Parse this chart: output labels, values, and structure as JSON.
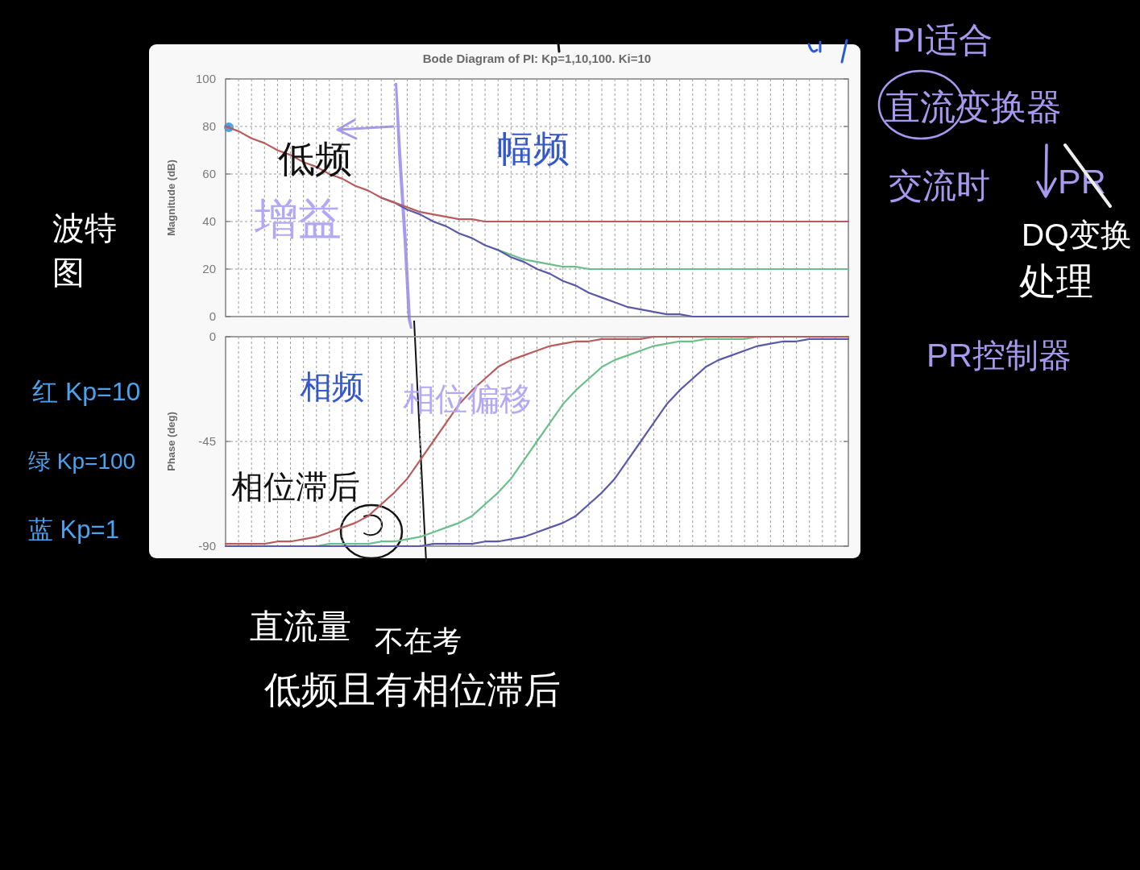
{
  "chart_data": [
    {
      "type": "line",
      "title": "Bode Diagram of PI: Kp=1,10,100. Ki=10",
      "ylabel": "Magnitude (dB)",
      "categories": [
        null,
        null,
        null,
        null,
        null,
        null,
        null,
        null,
        null,
        null,
        null,
        null,
        null,
        null,
        null,
        null,
        null,
        null,
        null,
        null,
        null,
        null,
        null,
        null,
        null,
        null,
        null,
        null,
        null,
        null,
        null,
        null,
        null,
        null,
        null,
        null,
        null,
        null,
        null,
        null,
        null,
        null,
        null,
        null,
        null,
        null,
        null,
        null,
        null
      ],
      "series": [
        {
          "color": "#6cbf8c",
          "values": [
            null,
            null,
            null,
            null,
            null,
            null,
            null,
            null,
            null,
            null,
            null,
            null,
            null,
            null,
            null,
            null,
            null,
            null,
            null,
            null,
            null,
            28,
            26,
            24,
            23,
            22,
            21,
            21,
            20,
            20,
            20,
            20,
            20,
            20,
            20,
            20,
            20,
            20,
            20,
            20,
            20,
            20,
            20,
            20,
            20,
            20,
            20,
            20,
            20
          ]
        },
        {
          "color": "#5a5aa8",
          "values": [
            null,
            null,
            null,
            null,
            null,
            null,
            null,
            null,
            null,
            null,
            null,
            null,
            50,
            48,
            45,
            43,
            40,
            38,
            35,
            33,
            30,
            28,
            25,
            23,
            20,
            18,
            15,
            13,
            10,
            8,
            6,
            4,
            3,
            2,
            1,
            1,
            0,
            0,
            0,
            0,
            0,
            0,
            0,
            0,
            0,
            0,
            0,
            0,
            0
          ]
        },
        {
          "color": "#b85c5c",
          "values": [
            80,
            78,
            75,
            73,
            70,
            68,
            65,
            63,
            60,
            58,
            55,
            53,
            50,
            48,
            46,
            44,
            43,
            42,
            41,
            41,
            40,
            40,
            40,
            40,
            40,
            40,
            40,
            40,
            40,
            40,
            40,
            40,
            40,
            40,
            40,
            40,
            40,
            40,
            40,
            40,
            40,
            40,
            40,
            40,
            40,
            40,
            40,
            40,
            40
          ]
        }
      ],
      "ylim": [
        0,
        100
      ],
      "yticks": [
        0,
        20,
        40,
        60,
        80,
        100
      ],
      "grid": true,
      "tick_labels": "y",
      "annotations": [
        "PI适合",
        "直流变换器",
        "交流时",
        "PR",
        "DQ变换",
        "处理",
        "PR控制器",
        "波特图",
        "红 Kp=10",
        "绿 Kp=100",
        "蓝 Kp=1",
        "低频",
        "增益",
        "幅频"
      ]
    },
    {
      "type": "line",
      "ylabel": "Phase (deg)",
      "categories": [
        null,
        null,
        null,
        null,
        null,
        null,
        null,
        null,
        null,
        null,
        null,
        null,
        null,
        null,
        null,
        null,
        null,
        null,
        null,
        null,
        null,
        null,
        null,
        null,
        null,
        null,
        null,
        null,
        null,
        null,
        null,
        null,
        null,
        null,
        null,
        null,
        null,
        null,
        null,
        null,
        null,
        null,
        null,
        null,
        null,
        null,
        null,
        null,
        null
      ],
      "series": [
        {
          "color": "#6cbf8c",
          "values": [
            null,
            null,
            null,
            null,
            null,
            null,
            null,
            -90,
            -89,
            -89,
            -89,
            -89,
            -88,
            -88,
            -87,
            -86,
            -84,
            -82,
            -80,
            -77,
            -72,
            -67,
            -61,
            -53,
            -45,
            -37,
            -29,
            -23,
            -18,
            -13,
            -10,
            -8,
            -6,
            -4,
            -3,
            -2,
            -2,
            -1,
            -1,
            -1,
            -1,
            0,
            null,
            null,
            null,
            null,
            null,
            null,
            null
          ]
        },
        {
          "color": "#5a5aa8",
          "values": [
            -90,
            -90,
            -90,
            -90,
            -90,
            -90,
            -90,
            -90,
            -90,
            -90,
            -90,
            -90,
            -90,
            -90,
            -90,
            -90,
            -89,
            -89,
            -89,
            -89,
            -88,
            -88,
            -87,
            -86,
            -84,
            -82,
            -80,
            -77,
            -72,
            -67,
            -61,
            -53,
            -45,
            -37,
            -29,
            -23,
            -18,
            -13,
            -10,
            -8,
            -6,
            -4,
            -3,
            -2,
            -2,
            -1,
            -1,
            -1,
            -1
          ]
        },
        {
          "color": "#b85c5c",
          "values": [
            -89,
            -89,
            -89,
            -89,
            -88,
            -88,
            -87,
            -86,
            -84,
            -82,
            -80,
            -77,
            -72,
            -67,
            -61,
            -53,
            -45,
            -37,
            -29,
            -23,
            -18,
            -13,
            -10,
            -8,
            -6,
            -4,
            -3,
            -2,
            -2,
            -1,
            -1,
            -1,
            -1,
            0,
            0,
            0,
            0,
            0,
            0,
            0,
            0,
            0,
            0,
            0,
            0,
            0,
            0,
            0,
            0
          ]
        }
      ],
      "ylim": [
        -90,
        0
      ],
      "yticks": [
        -90,
        -45,
        0
      ],
      "grid": true,
      "tick_labels": "y",
      "annotations": [
        "相频",
        "相位偏移",
        "相位滞后",
        "直流量",
        "不在考",
        "低频且有相位滞后"
      ]
    }
  ]
}
